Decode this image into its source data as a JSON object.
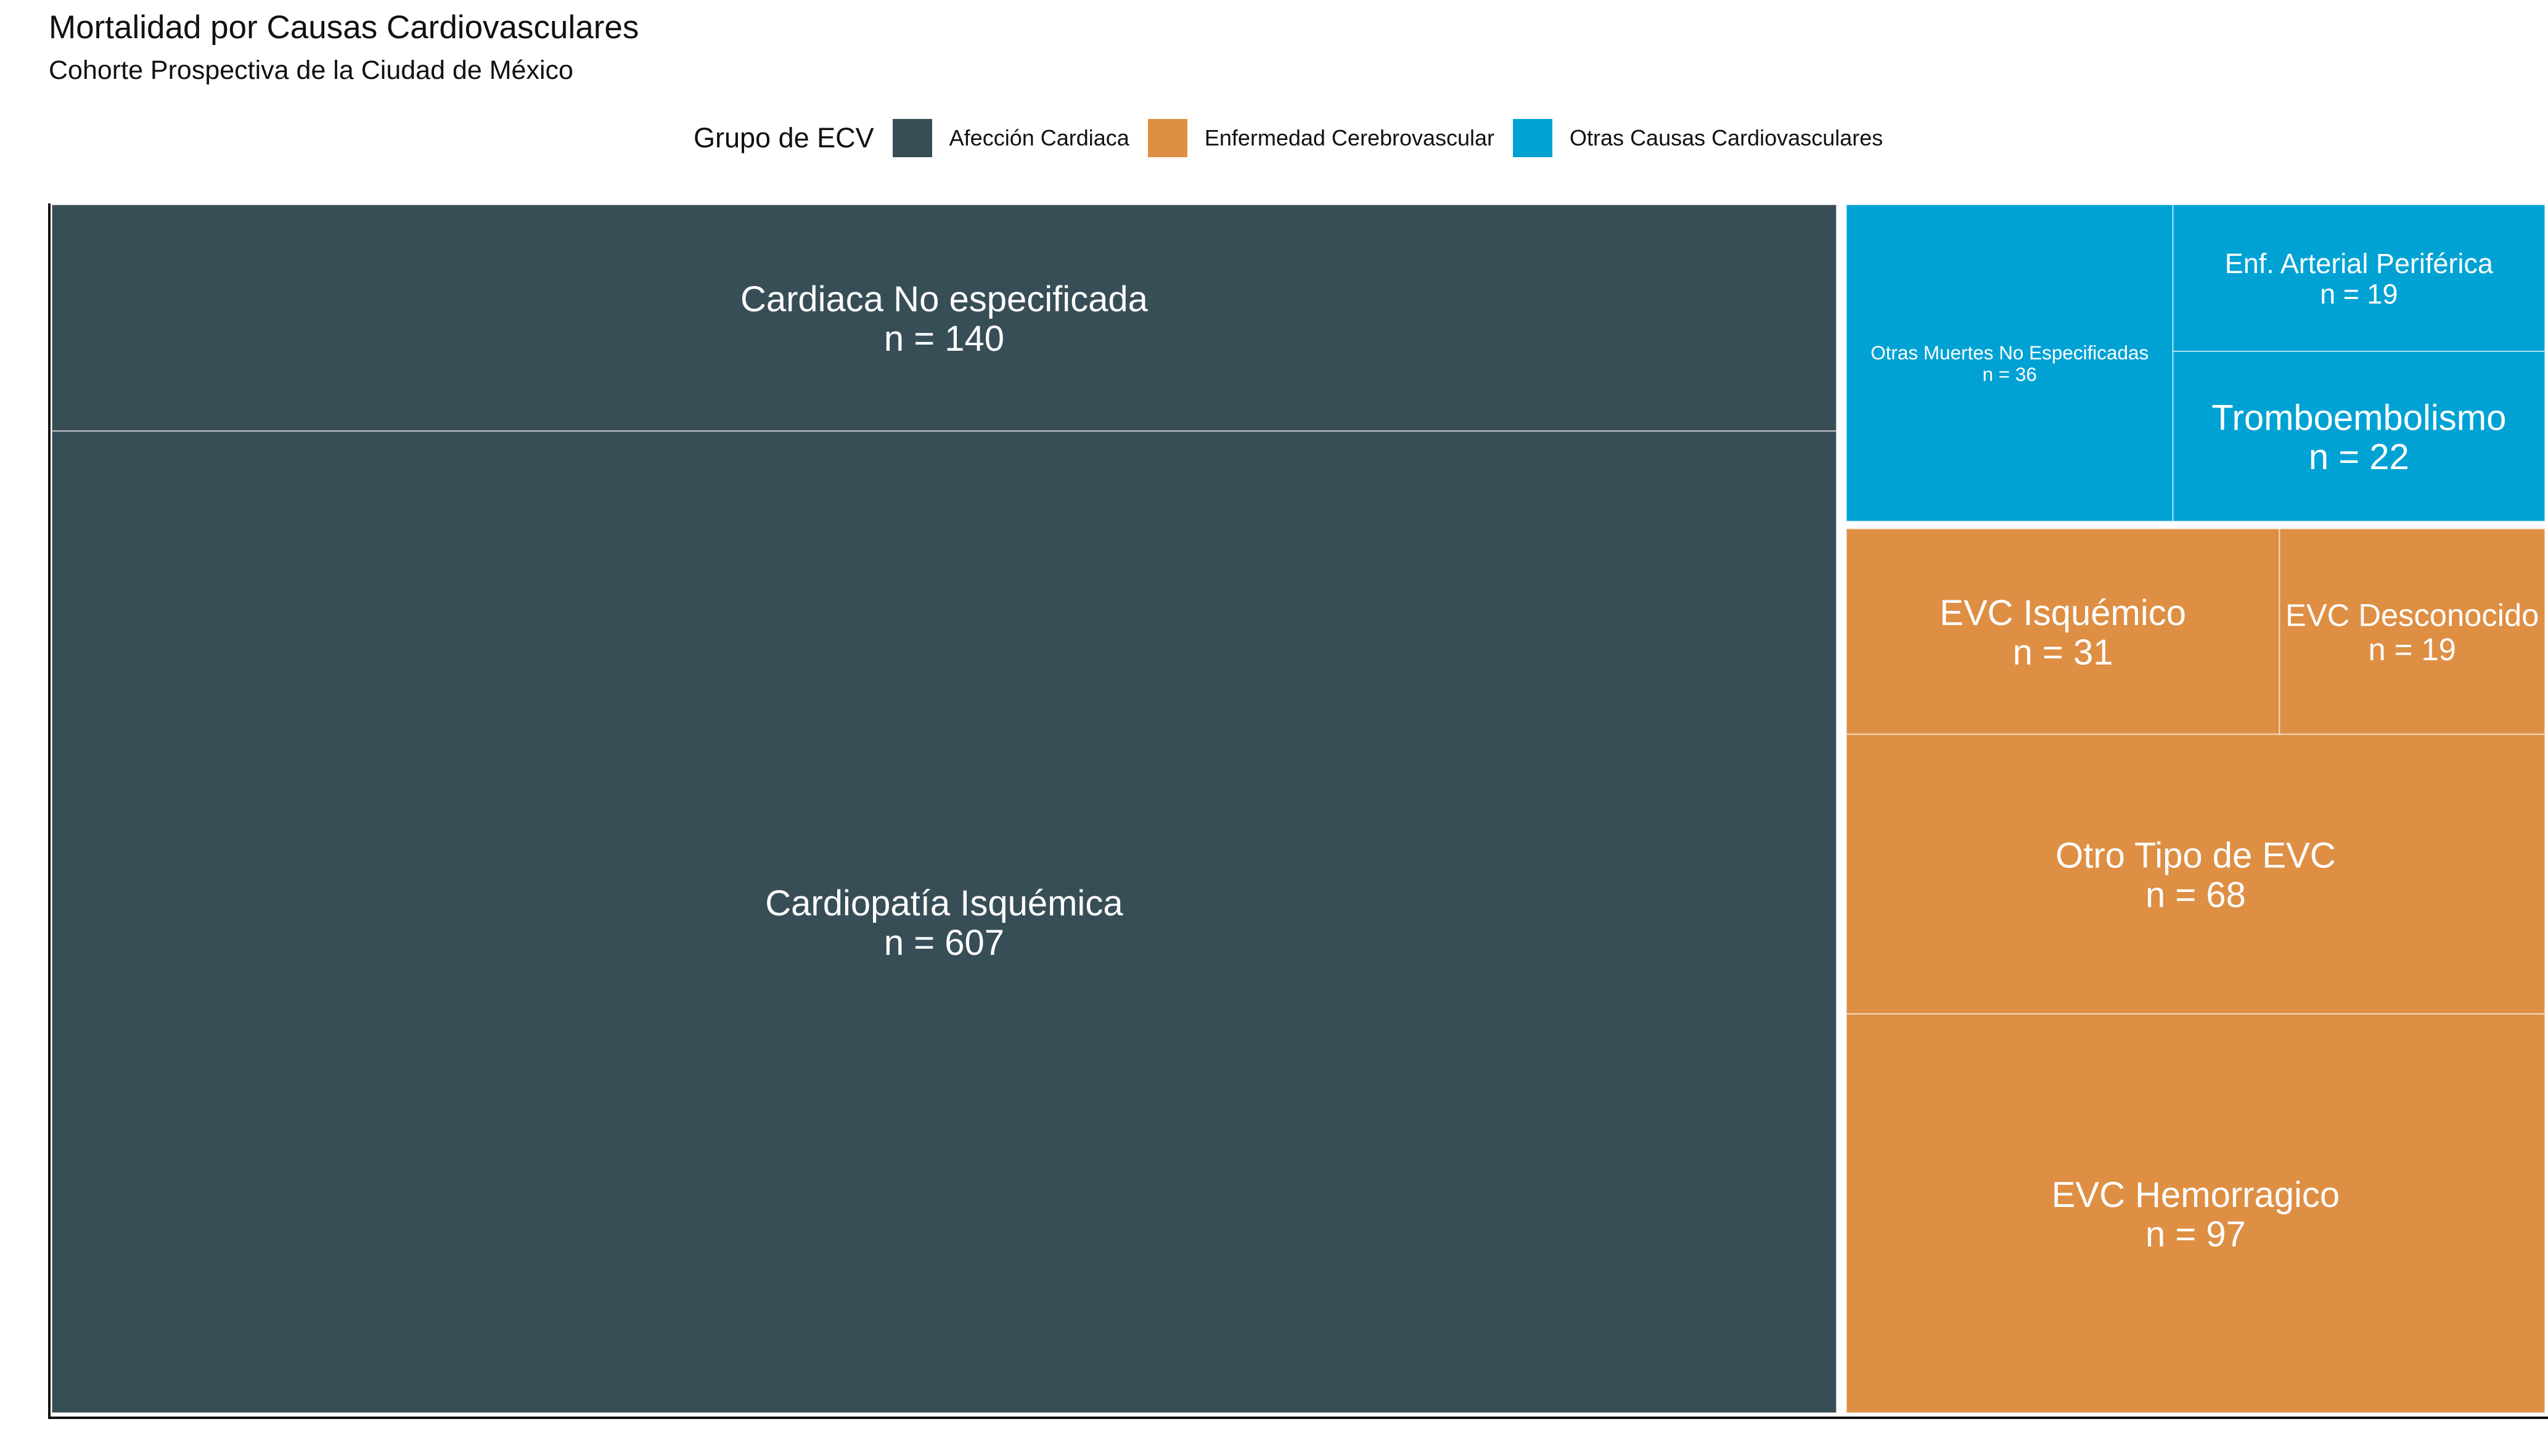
{
  "title": "Mortalidad por Causas Cardiovasculares",
  "subtitle": "Cohorte Prospectiva de la Ciudad de México",
  "legend": {
    "title": "Grupo de ECV",
    "items": [
      {
        "label": "Afección Cardiaca",
        "color": "#384e57"
      },
      {
        "label": "Enfermedad Cerebrovascular",
        "color": "#de8f44"
      },
      {
        "label": "Otras Causas Cardiovasculares",
        "color": "#00a2d4"
      }
    ]
  },
  "chart_data": {
    "type": "treemap",
    "title": "Mortalidad por Causas Cardiovasculares",
    "subtitle": "Cohorte Prospectiva de la Ciudad de México",
    "legend_title": "Grupo de ECV",
    "legend_position": "top",
    "groups": [
      {
        "name": "Afección Cardiaca",
        "color": "#384e57",
        "children": [
          {
            "name": "Cardiaca No especificada",
            "value": 140,
            "label": "n = 140"
          },
          {
            "name": "Cardiopatía Isquémica",
            "value": 607,
            "label": "n = 607"
          }
        ]
      },
      {
        "name": "Otras Causas Cardiovasculares",
        "color": "#00a2d4",
        "children": [
          {
            "name": "Otras Muertes No Especificadas",
            "value": 36,
            "label": "n = 36"
          },
          {
            "name": "Enf. Arterial Periférica",
            "value": 19,
            "label": "n = 19"
          },
          {
            "name": "Tromboembolismo",
            "value": 22,
            "label": "n = 22"
          }
        ]
      },
      {
        "name": "Enfermedad Cerebrovascular",
        "color": "#de8f44",
        "children": [
          {
            "name": "EVC Isquémico",
            "value": 31,
            "label": "n = 31"
          },
          {
            "name": "EVC Desconocido",
            "value": 19,
            "label": "n = 19"
          },
          {
            "name": "Otro Tipo de EVC",
            "value": 68,
            "label": "n = 68"
          },
          {
            "name": "EVC Hemorragico",
            "value": 97,
            "label": "n = 97"
          }
        ]
      }
    ]
  }
}
